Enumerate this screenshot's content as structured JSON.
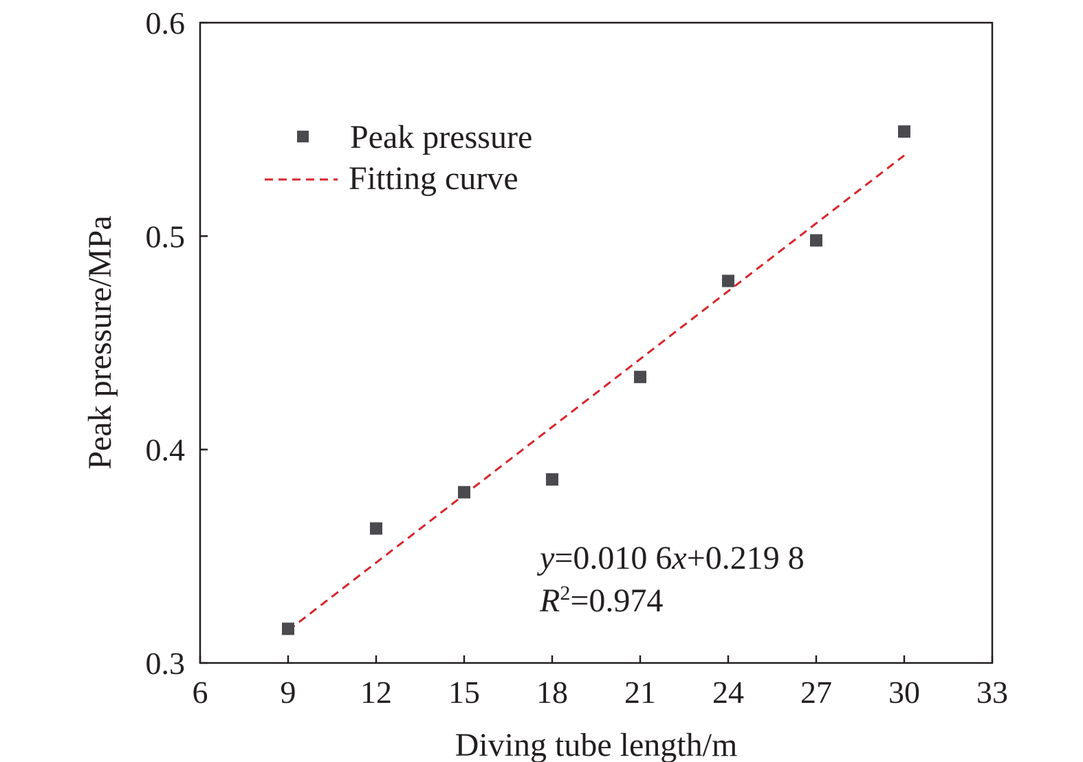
{
  "chart_data": {
    "type": "scatter",
    "title": "",
    "xlabel": "Diving tube length/m",
    "ylabel": "Peak pressure/MPa",
    "xlim": [
      6,
      33
    ],
    "ylim": [
      0.3,
      0.6
    ],
    "x_ticks": [
      "6",
      "9",
      "12",
      "15",
      "18",
      "21",
      "24",
      "27",
      "30",
      "33"
    ],
    "y_ticks": [
      "0.3",
      "0.4",
      "0.5",
      "0.6"
    ],
    "grid": false,
    "legend_position": "top-left",
    "series": [
      {
        "name": "Peak pressure",
        "type": "scatter",
        "marker": "square",
        "color": "#4a4a4f",
        "x": [
          9,
          12,
          15,
          18,
          21,
          24,
          27,
          30
        ],
        "y": [
          0.316,
          0.363,
          0.38,
          0.386,
          0.434,
          0.479,
          0.498,
          0.549
        ]
      },
      {
        "name": "Fitting curve",
        "type": "line",
        "style": "dashed",
        "color": "#d7262c",
        "slope": 0.0106,
        "intercept": 0.2198,
        "x_range": [
          9,
          30
        ]
      }
    ],
    "annotations": {
      "equation": {
        "y_var": "y",
        "eq_part1": "=0.010 6",
        "x_var": "x",
        "eq_part2": "+0.219 8"
      },
      "r_squared": {
        "r_var": "R",
        "sup": "2",
        "value": "=0.974"
      }
    }
  }
}
